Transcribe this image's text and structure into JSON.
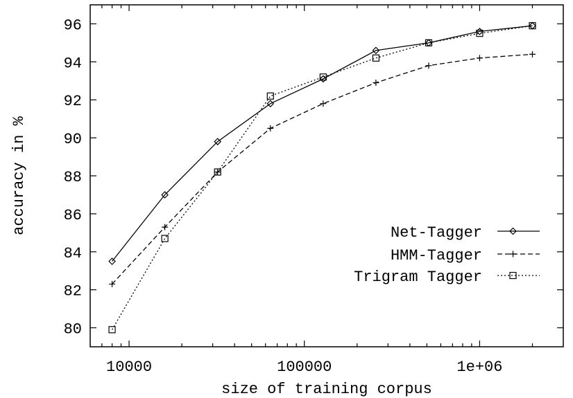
{
  "chart_data": {
    "type": "line",
    "title": "",
    "xlabel": "size of training corpus",
    "ylabel": "accuracy in %",
    "x_scale": "log",
    "xlim": [
      6000,
      3000000
    ],
    "ylim": [
      79,
      97
    ],
    "x_ticks": [
      {
        "value": 10000,
        "label": "10000"
      },
      {
        "value": 100000,
        "label": "100000"
      },
      {
        "value": 1000000,
        "label": "1e+06"
      }
    ],
    "y_ticks": [
      {
        "value": 80,
        "label": "80"
      },
      {
        "value": 82,
        "label": "82"
      },
      {
        "value": 84,
        "label": "84"
      },
      {
        "value": 86,
        "label": "86"
      },
      {
        "value": 88,
        "label": "88"
      },
      {
        "value": 90,
        "label": "90"
      },
      {
        "value": 92,
        "label": "92"
      },
      {
        "value": 94,
        "label": "94"
      },
      {
        "value": 96,
        "label": "96"
      }
    ],
    "grid": false,
    "legend_position": "bottom-right",
    "x": [
      8000,
      16000,
      32000,
      64000,
      128000,
      256000,
      512000,
      1000000,
      2000000
    ],
    "series": [
      {
        "name": "Net-Tagger",
        "marker": "diamond",
        "line_style": "solid",
        "values": [
          83.5,
          87.0,
          89.8,
          91.8,
          93.1,
          94.6,
          95.0,
          95.6,
          95.9
        ]
      },
      {
        "name": "HMM-Tagger",
        "marker": "plus",
        "line_style": "dashed",
        "values": [
          82.3,
          85.3,
          88.2,
          90.5,
          91.8,
          92.9,
          93.8,
          94.2,
          94.4
        ]
      },
      {
        "name": "Trigram Tagger",
        "marker": "square",
        "line_style": "dotted",
        "values": [
          79.9,
          84.7,
          88.2,
          92.2,
          93.2,
          94.2,
          95.0,
          95.5,
          95.9
        ]
      }
    ]
  }
}
